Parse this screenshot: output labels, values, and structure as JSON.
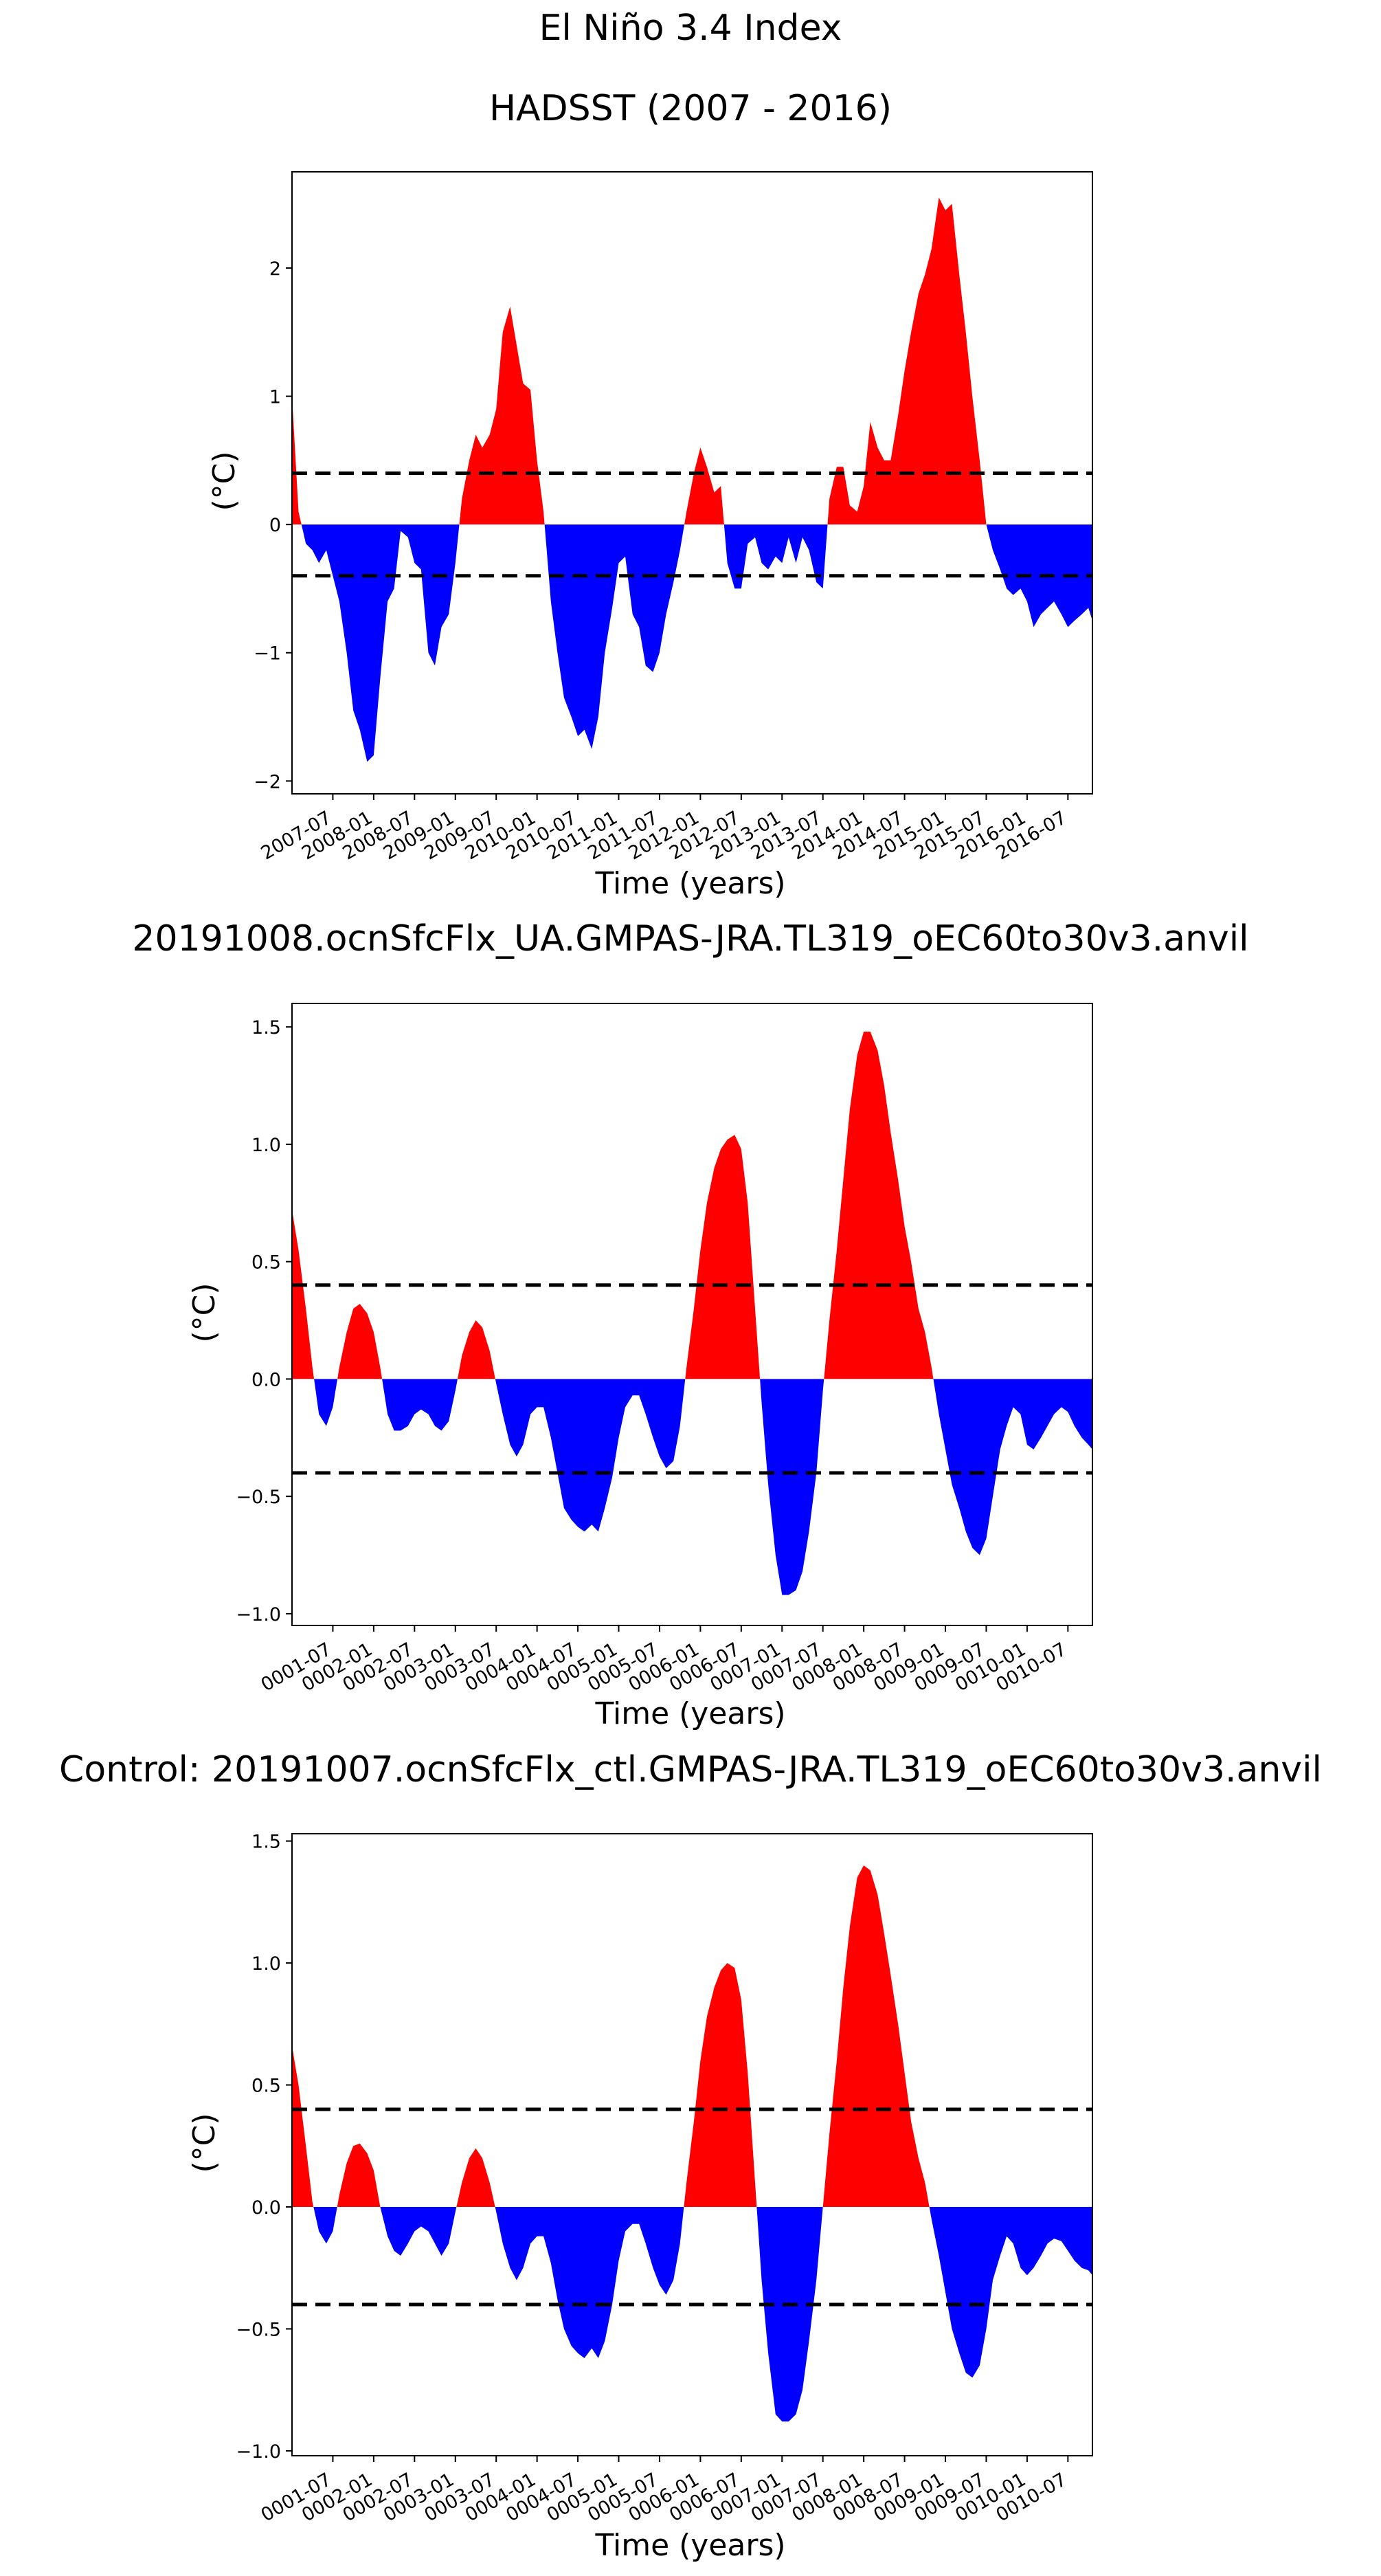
{
  "page": {
    "title": "El Niño 3.4 Index"
  },
  "chart_data": [
    {
      "type": "area",
      "title": "HADSST (2007 - 2016)",
      "xlabel": "Time (years)",
      "ylabel": "(°C)",
      "ylim": [
        -2.1,
        2.75
      ],
      "yticks": [
        -2,
        -1,
        0,
        1,
        2
      ],
      "ytick_labels": [
        "−2",
        "−1",
        "0",
        "1",
        "2"
      ],
      "xlim": [
        2007.0,
        2016.8
      ],
      "xticks": [
        2007.5,
        2008.0,
        2008.5,
        2009.0,
        2009.5,
        2010.0,
        2010.5,
        2011.0,
        2011.5,
        2012.0,
        2012.5,
        2013.0,
        2013.5,
        2014.0,
        2014.5,
        2015.0,
        2015.5,
        2016.0,
        2016.5
      ],
      "xtick_labels": [
        "2007-07",
        "2008-01",
        "2008-07",
        "2009-01",
        "2009-07",
        "2010-01",
        "2010-07",
        "2011-01",
        "2011-07",
        "2012-01",
        "2012-07",
        "2013-01",
        "2013-07",
        "2014-01",
        "2014-07",
        "2015-01",
        "2015-07",
        "2016-01",
        "2016-07"
      ],
      "thresholds": [
        0.4,
        -0.4
      ],
      "positive_color": "#ff0000",
      "negative_color": "#0000ff",
      "threshold_color": "#000000",
      "grid": false,
      "x": [
        2007.0,
        2007.08,
        2007.17,
        2007.25,
        2007.33,
        2007.42,
        2007.5,
        2007.58,
        2007.67,
        2007.75,
        2007.83,
        2007.92,
        2008.0,
        2008.08,
        2008.17,
        2008.25,
        2008.33,
        2008.42,
        2008.5,
        2008.58,
        2008.67,
        2008.75,
        2008.83,
        2008.92,
        2009.0,
        2009.08,
        2009.17,
        2009.25,
        2009.33,
        2009.42,
        2009.5,
        2009.58,
        2009.67,
        2009.75,
        2009.83,
        2009.92,
        2010.0,
        2010.08,
        2010.17,
        2010.25,
        2010.33,
        2010.42,
        2010.5,
        2010.58,
        2010.67,
        2010.75,
        2010.83,
        2010.92,
        2011.0,
        2011.08,
        2011.17,
        2011.25,
        2011.33,
        2011.42,
        2011.5,
        2011.58,
        2011.67,
        2011.75,
        2011.83,
        2011.92,
        2012.0,
        2012.08,
        2012.17,
        2012.25,
        2012.33,
        2012.42,
        2012.5,
        2012.58,
        2012.67,
        2012.75,
        2012.83,
        2012.92,
        2013.0,
        2013.08,
        2013.17,
        2013.25,
        2013.33,
        2013.42,
        2013.5,
        2013.58,
        2013.67,
        2013.75,
        2013.83,
        2013.92,
        2014.0,
        2014.08,
        2014.17,
        2014.25,
        2014.33,
        2014.42,
        2014.5,
        2014.58,
        2014.67,
        2014.75,
        2014.83,
        2014.92,
        2015.0,
        2015.08,
        2015.17,
        2015.25,
        2015.33,
        2015.42,
        2015.5,
        2015.58,
        2015.67,
        2015.75,
        2015.83,
        2015.92,
        2016.0,
        2016.08,
        2016.17,
        2016.25,
        2016.33,
        2016.42,
        2016.5,
        2016.58,
        2016.67,
        2016.75,
        2016.8
      ],
      "values": [
        1.0,
        0.1,
        -0.15,
        -0.2,
        -0.3,
        -0.2,
        -0.4,
        -0.6,
        -1.0,
        -1.45,
        -1.6,
        -1.85,
        -1.8,
        -1.2,
        -0.6,
        -0.5,
        -0.05,
        -0.1,
        -0.3,
        -0.35,
        -1.0,
        -1.1,
        -0.8,
        -0.7,
        -0.3,
        0.2,
        0.5,
        0.7,
        0.6,
        0.7,
        0.9,
        1.5,
        1.7,
        1.4,
        1.1,
        1.05,
        0.5,
        0.1,
        -0.6,
        -1.0,
        -1.35,
        -1.5,
        -1.65,
        -1.6,
        -1.75,
        -1.5,
        -1.0,
        -0.65,
        -0.3,
        -0.25,
        -0.7,
        -0.8,
        -1.1,
        -1.15,
        -1.0,
        -0.7,
        -0.45,
        -0.2,
        0.1,
        0.4,
        0.6,
        0.45,
        0.25,
        0.3,
        -0.3,
        -0.5,
        -0.5,
        -0.15,
        -0.1,
        -0.3,
        -0.35,
        -0.25,
        -0.3,
        -0.1,
        -0.3,
        -0.1,
        -0.2,
        -0.45,
        -0.5,
        0.2,
        0.45,
        0.45,
        0.15,
        0.1,
        0.3,
        0.8,
        0.6,
        0.5,
        0.5,
        0.85,
        1.2,
        1.5,
        1.8,
        1.95,
        2.15,
        2.55,
        2.45,
        2.5,
        1.95,
        1.5,
        1.0,
        0.5,
        0.0,
        -0.2,
        -0.35,
        -0.5,
        -0.55,
        -0.5,
        -0.6,
        -0.8,
        -0.7,
        -0.65,
        -0.6,
        -0.7,
        -0.8,
        -0.75,
        -0.7,
        -0.65,
        -0.75
      ],
      "xlabel_label_note": ""
    },
    {
      "type": "area",
      "title": "20191008.ocnSfcFlx_UA.GMPAS-JRA.TL319_oEC60to30v3.anvil",
      "xlabel": "Time (years)",
      "ylabel": "(°C)",
      "ylim": [
        -1.05,
        1.6
      ],
      "yticks": [
        -1.0,
        -0.5,
        0.0,
        0.5,
        1.0,
        1.5
      ],
      "ytick_labels": [
        "−1.0",
        "−0.5",
        "0.0",
        "0.5",
        "1.0",
        "1.5"
      ],
      "xlim": [
        1.0,
        10.8
      ],
      "xticks": [
        1.5,
        2.0,
        2.5,
        3.0,
        3.5,
        4.0,
        4.5,
        5.0,
        5.5,
        6.0,
        6.5,
        7.0,
        7.5,
        8.0,
        8.5,
        9.0,
        9.5,
        10.0,
        10.5
      ],
      "xtick_labels": [
        "0001-07",
        "0002-01",
        "0002-07",
        "0003-01",
        "0003-07",
        "0004-01",
        "0004-07",
        "0005-01",
        "0005-07",
        "0006-01",
        "0006-07",
        "0007-01",
        "0007-07",
        "0008-01",
        "0008-07",
        "0009-01",
        "0009-07",
        "0010-01",
        "0010-07"
      ],
      "thresholds": [
        0.4,
        -0.4
      ],
      "positive_color": "#ff0000",
      "negative_color": "#0000ff",
      "threshold_color": "#000000",
      "grid": false,
      "x": [
        1.0,
        1.08,
        1.17,
        1.25,
        1.33,
        1.42,
        1.5,
        1.58,
        1.67,
        1.75,
        1.83,
        1.92,
        2.0,
        2.08,
        2.17,
        2.25,
        2.33,
        2.42,
        2.5,
        2.58,
        2.67,
        2.75,
        2.83,
        2.92,
        3.0,
        3.08,
        3.17,
        3.25,
        3.33,
        3.42,
        3.5,
        3.58,
        3.67,
        3.75,
        3.83,
        3.92,
        4.0,
        4.08,
        4.17,
        4.25,
        4.33,
        4.42,
        4.5,
        4.58,
        4.67,
        4.75,
        4.83,
        4.92,
        5.0,
        5.08,
        5.17,
        5.25,
        5.33,
        5.42,
        5.5,
        5.58,
        5.67,
        5.75,
        5.83,
        5.92,
        6.0,
        6.08,
        6.17,
        6.25,
        6.33,
        6.42,
        6.5,
        6.58,
        6.67,
        6.75,
        6.83,
        6.92,
        7.0,
        7.08,
        7.17,
        7.25,
        7.33,
        7.42,
        7.5,
        7.58,
        7.67,
        7.75,
        7.83,
        7.92,
        8.0,
        8.08,
        8.17,
        8.25,
        8.33,
        8.42,
        8.5,
        8.58,
        8.67,
        8.75,
        8.83,
        8.92,
        9.0,
        9.08,
        9.17,
        9.25,
        9.33,
        9.42,
        9.5,
        9.58,
        9.67,
        9.75,
        9.83,
        9.92,
        10.0,
        10.08,
        10.17,
        10.25,
        10.33,
        10.42,
        10.5,
        10.58,
        10.67,
        10.75,
        10.8
      ],
      "values": [
        0.72,
        0.55,
        0.3,
        0.05,
        -0.15,
        -0.2,
        -0.12,
        0.05,
        0.2,
        0.3,
        0.32,
        0.28,
        0.2,
        0.05,
        -0.15,
        -0.22,
        -0.22,
        -0.2,
        -0.15,
        -0.13,
        -0.15,
        -0.2,
        -0.22,
        -0.18,
        -0.05,
        0.1,
        0.2,
        0.25,
        0.22,
        0.12,
        -0.02,
        -0.15,
        -0.28,
        -0.33,
        -0.28,
        -0.15,
        -0.12,
        -0.12,
        -0.25,
        -0.4,
        -0.55,
        -0.6,
        -0.63,
        -0.65,
        -0.62,
        -0.65,
        -0.55,
        -0.42,
        -0.25,
        -0.12,
        -0.07,
        -0.07,
        -0.15,
        -0.25,
        -0.33,
        -0.38,
        -0.35,
        -0.2,
        0.05,
        0.3,
        0.55,
        0.75,
        0.9,
        0.98,
        1.02,
        1.04,
        0.98,
        0.75,
        0.3,
        -0.1,
        -0.45,
        -0.75,
        -0.92,
        -0.92,
        -0.9,
        -0.82,
        -0.65,
        -0.4,
        -0.05,
        0.25,
        0.55,
        0.85,
        1.15,
        1.38,
        1.48,
        1.48,
        1.4,
        1.25,
        1.05,
        0.85,
        0.65,
        0.5,
        0.3,
        0.2,
        0.05,
        -0.15,
        -0.3,
        -0.45,
        -0.55,
        -0.65,
        -0.72,
        -0.75,
        -0.68,
        -0.5,
        -0.3,
        -0.2,
        -0.12,
        -0.15,
        -0.28,
        -0.3,
        -0.25,
        -0.2,
        -0.15,
        -0.12,
        -0.14,
        -0.2,
        -0.25,
        -0.28,
        -0.3
      ],
      "xlabel_label_note": ""
    },
    {
      "type": "area",
      "title": "Control: 20191007.ocnSfcFlx_ctl.GMPAS-JRA.TL319_oEC60to30v3.anvil",
      "xlabel": "Time (years)",
      "ylabel": "(°C)",
      "ylim": [
        -1.02,
        1.53
      ],
      "yticks": [
        -1.0,
        -0.5,
        0.0,
        0.5,
        1.0,
        1.5
      ],
      "ytick_labels": [
        "−1.0",
        "−0.5",
        "0.0",
        "0.5",
        "1.0",
        "1.5"
      ],
      "xlim": [
        1.0,
        10.8
      ],
      "xticks": [
        1.5,
        2.0,
        2.5,
        3.0,
        3.5,
        4.0,
        4.5,
        5.0,
        5.5,
        6.0,
        6.5,
        7.0,
        7.5,
        8.0,
        8.5,
        9.0,
        9.5,
        10.0,
        10.5
      ],
      "xtick_labels": [
        "0001-07",
        "0002-01",
        "0002-07",
        "0003-01",
        "0003-07",
        "0004-01",
        "0004-07",
        "0005-01",
        "0005-07",
        "0006-01",
        "0006-07",
        "0007-01",
        "0007-07",
        "0008-01",
        "0008-07",
        "0009-01",
        "0009-07",
        "0010-01",
        "0010-07"
      ],
      "thresholds": [
        0.4,
        -0.4
      ],
      "positive_color": "#ff0000",
      "negative_color": "#0000ff",
      "threshold_color": "#000000",
      "grid": false,
      "x": [
        1.0,
        1.08,
        1.17,
        1.25,
        1.33,
        1.42,
        1.5,
        1.58,
        1.67,
        1.75,
        1.83,
        1.92,
        2.0,
        2.08,
        2.17,
        2.25,
        2.33,
        2.42,
        2.5,
        2.58,
        2.67,
        2.75,
        2.83,
        2.92,
        3.0,
        3.08,
        3.17,
        3.25,
        3.33,
        3.42,
        3.5,
        3.58,
        3.67,
        3.75,
        3.83,
        3.92,
        4.0,
        4.08,
        4.17,
        4.25,
        4.33,
        4.42,
        4.5,
        4.58,
        4.67,
        4.75,
        4.83,
        4.92,
        5.0,
        5.08,
        5.17,
        5.25,
        5.33,
        5.42,
        5.5,
        5.58,
        5.67,
        5.75,
        5.83,
        5.92,
        6.0,
        6.08,
        6.17,
        6.25,
        6.33,
        6.42,
        6.5,
        6.58,
        6.67,
        6.75,
        6.83,
        6.92,
        7.0,
        7.08,
        7.17,
        7.25,
        7.33,
        7.42,
        7.5,
        7.58,
        7.67,
        7.75,
        7.83,
        7.92,
        8.0,
        8.08,
        8.17,
        8.25,
        8.33,
        8.42,
        8.5,
        8.58,
        8.67,
        8.75,
        8.83,
        8.92,
        9.0,
        9.08,
        9.17,
        9.25,
        9.33,
        9.42,
        9.5,
        9.58,
        9.67,
        9.75,
        9.83,
        9.92,
        10.0,
        10.08,
        10.17,
        10.25,
        10.33,
        10.42,
        10.5,
        10.58,
        10.67,
        10.75,
        10.8
      ],
      "values": [
        0.66,
        0.5,
        0.25,
        0.02,
        -0.1,
        -0.15,
        -0.1,
        0.05,
        0.18,
        0.25,
        0.26,
        0.22,
        0.15,
        0.0,
        -0.12,
        -0.18,
        -0.2,
        -0.15,
        -0.1,
        -0.08,
        -0.1,
        -0.15,
        -0.2,
        -0.15,
        -0.02,
        0.1,
        0.2,
        0.24,
        0.2,
        0.1,
        -0.02,
        -0.15,
        -0.25,
        -0.3,
        -0.25,
        -0.15,
        -0.12,
        -0.12,
        -0.23,
        -0.38,
        -0.5,
        -0.57,
        -0.6,
        -0.62,
        -0.58,
        -0.62,
        -0.55,
        -0.4,
        -0.22,
        -0.1,
        -0.07,
        -0.07,
        -0.15,
        -0.25,
        -0.32,
        -0.36,
        -0.3,
        -0.15,
        0.1,
        0.35,
        0.6,
        0.78,
        0.9,
        0.97,
        1.0,
        0.98,
        0.85,
        0.55,
        0.1,
        -0.3,
        -0.6,
        -0.85,
        -0.88,
        -0.88,
        -0.85,
        -0.75,
        -0.55,
        -0.3,
        0.0,
        0.3,
        0.6,
        0.9,
        1.15,
        1.35,
        1.4,
        1.38,
        1.28,
        1.12,
        0.95,
        0.75,
        0.55,
        0.35,
        0.2,
        0.1,
        -0.05,
        -0.2,
        -0.35,
        -0.5,
        -0.6,
        -0.68,
        -0.7,
        -0.65,
        -0.5,
        -0.3,
        -0.2,
        -0.12,
        -0.15,
        -0.25,
        -0.28,
        -0.25,
        -0.2,
        -0.15,
        -0.13,
        -0.14,
        -0.18,
        -0.22,
        -0.25,
        -0.26,
        -0.28
      ],
      "xlabel_label_note": ""
    }
  ]
}
